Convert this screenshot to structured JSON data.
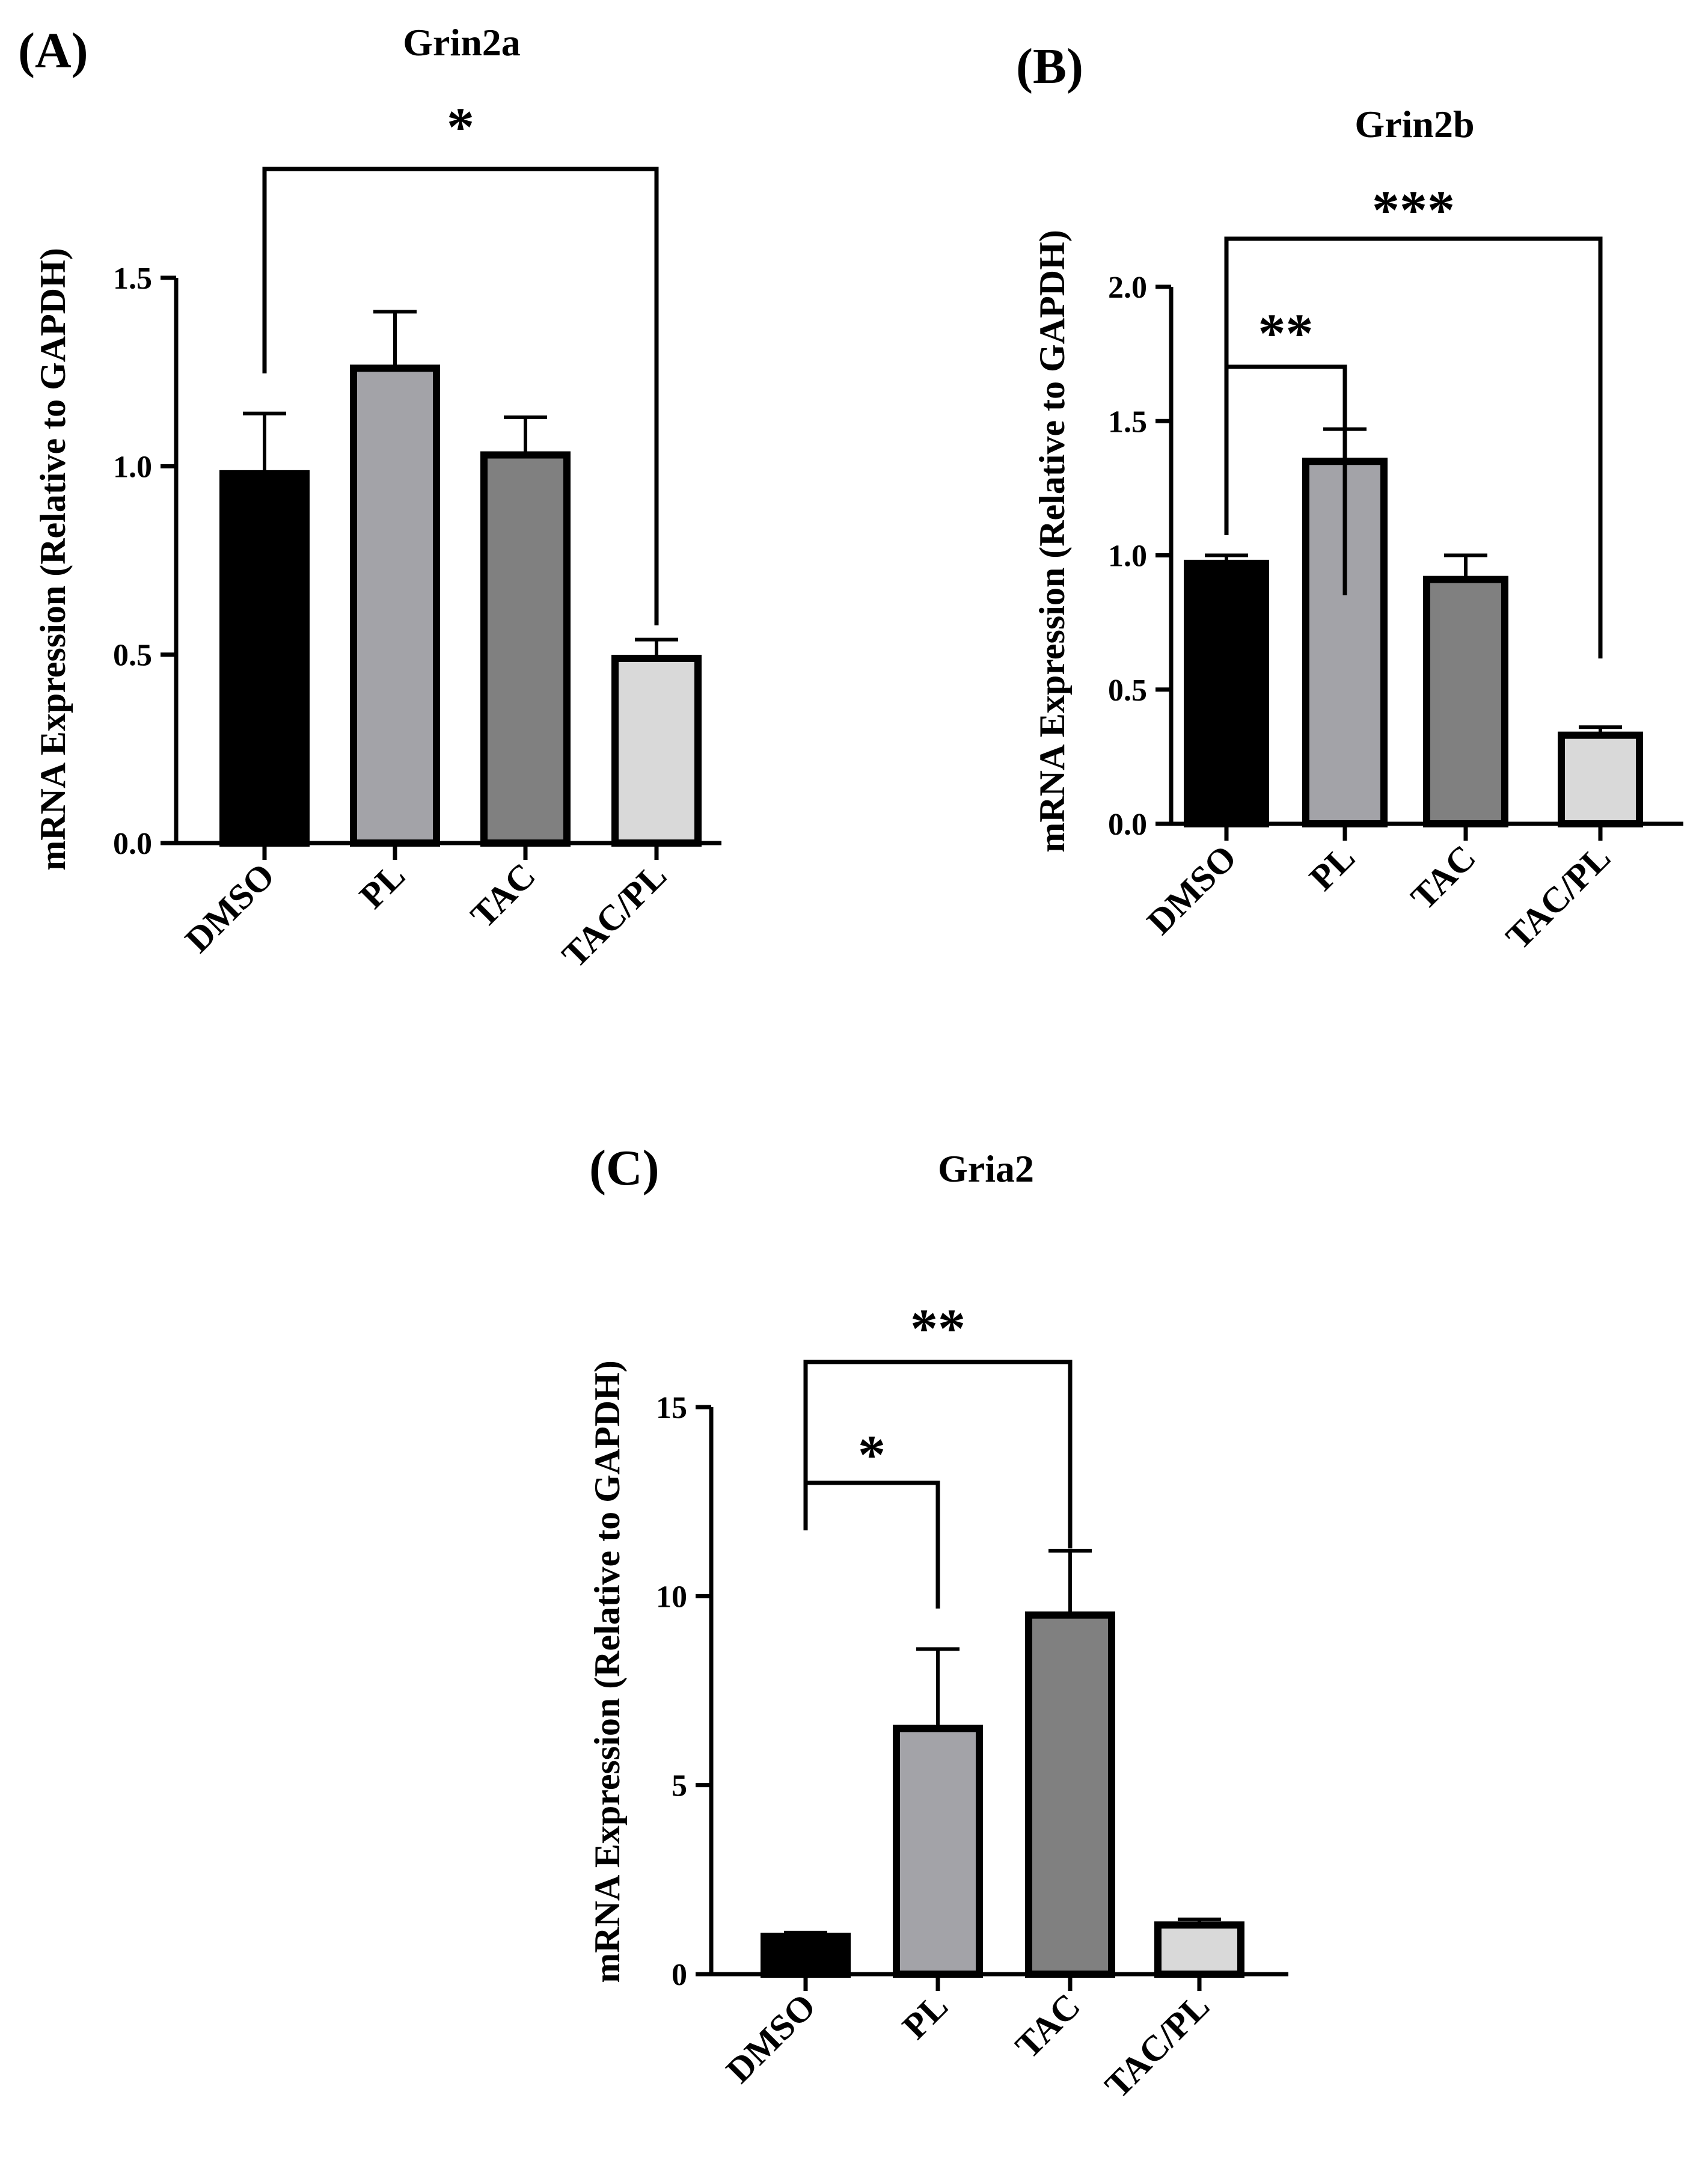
{
  "colors": {
    "DMSO": "#000000",
    "PL": "#a3a3a8",
    "TAC": "#808080",
    "TAC/PL": "#d9d9d9",
    "outline": "#000000"
  },
  "chart_data": [
    {
      "type": "bar",
      "panel": "(A)",
      "title": "Grin2a",
      "xlabel": "",
      "ylabel": "mRNA Expression (Relative to GAPDH)",
      "categories": [
        "DMSO",
        "PL",
        "TAC",
        "TAC/PL"
      ],
      "values": [
        0.98,
        1.26,
        1.03,
        0.49
      ],
      "errors": [
        0.16,
        0.15,
        0.1,
        0.05
      ],
      "ylim": [
        0,
        1.5
      ],
      "yticks": [
        0.0,
        0.5,
        1.0,
        1.5
      ],
      "ytick_labels": [
        "0.0",
        "0.5",
        "1.0",
        "1.5"
      ],
      "significance": [
        {
          "from": "DMSO",
          "to": "TAC/PL",
          "label": "*"
        }
      ]
    },
    {
      "type": "bar",
      "panel": "(B)",
      "title": "Grin2b",
      "xlabel": "",
      "ylabel": "mRNA Expression (Relative to GAPDH)",
      "categories": [
        "DMSO",
        "PL",
        "TAC",
        "TAC/PL"
      ],
      "values": [
        0.97,
        1.35,
        0.91,
        0.33
      ],
      "errors": [
        0.03,
        0.12,
        0.09,
        0.03
      ],
      "ylim": [
        0,
        2.0
      ],
      "yticks": [
        0.0,
        0.5,
        1.0,
        1.5,
        2.0
      ],
      "ytick_labels": [
        "0.0",
        "0.5",
        "1.0",
        "1.5",
        "2.0"
      ],
      "significance": [
        {
          "from": "DMSO",
          "to": "PL",
          "label": "**"
        },
        {
          "from": "DMSO",
          "to": "TAC/PL",
          "label": "***"
        }
      ]
    },
    {
      "type": "bar",
      "panel": "(C)",
      "title": "Gria2",
      "xlabel": "",
      "ylabel": "mRNA Expression (Relative to GAPDH)",
      "categories": [
        "DMSO",
        "PL",
        "TAC",
        "TAC/PL"
      ],
      "values": [
        1.0,
        6.5,
        9.5,
        1.3
      ],
      "errors": [
        0.1,
        2.1,
        1.7,
        0.15
      ],
      "ylim": [
        0,
        15
      ],
      "yticks": [
        0,
        5,
        10,
        15
      ],
      "ytick_labels": [
        "0",
        "5",
        "10",
        "15"
      ],
      "significance": [
        {
          "from": "DMSO",
          "to": "PL",
          "label": "*"
        },
        {
          "from": "DMSO",
          "to": "TAC",
          "label": "**"
        }
      ]
    }
  ]
}
